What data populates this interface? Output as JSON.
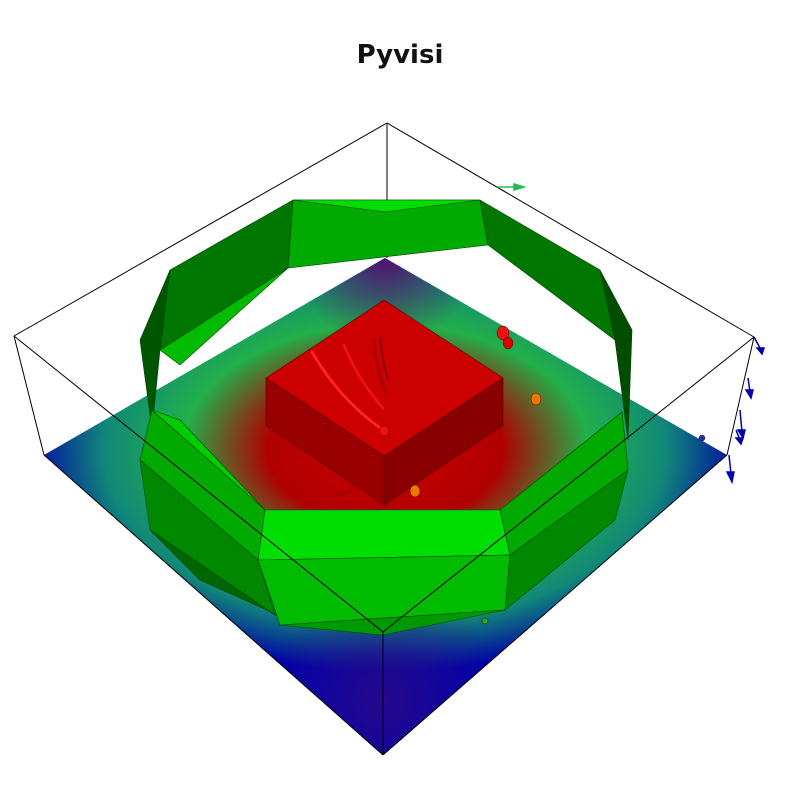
{
  "title": "Pyvisi",
  "colors": {
    "background": "#ffffff",
    "plane_low": "#0000a8",
    "plane_mid": "#22b04a",
    "plane_high": "#cc0000",
    "block_top": "#cc0000",
    "block_side_left": "#990000",
    "block_side_right": "#880000",
    "ring_light": "#00dd00",
    "ring_mid": "#00aa00",
    "ring_dark": "#005500",
    "bounding_box": "#000000",
    "arrow_blue": "#0000aa",
    "arrow_green": "#22bb55",
    "ball_red": "#ee1111",
    "ball_orange": "#ee7700"
  },
  "icons": {
    "bounding_box": "wireframe-box-icon",
    "arrows": "vector-arrow-icon"
  }
}
